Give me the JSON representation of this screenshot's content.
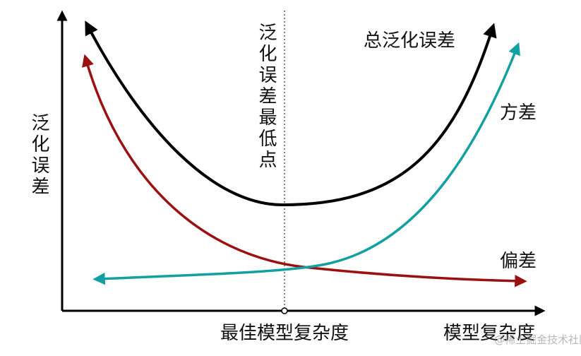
{
  "axes": {
    "y_label": "泛化误差",
    "x_label": "模型复杂度"
  },
  "curves": {
    "total": "总泛化误差",
    "variance": "方差",
    "bias": "偏差"
  },
  "optimum": {
    "line_label": "泛化误差最低点",
    "x_label": "最佳模型复杂度"
  },
  "watermark": "@稀土掘金技术社区"
}
